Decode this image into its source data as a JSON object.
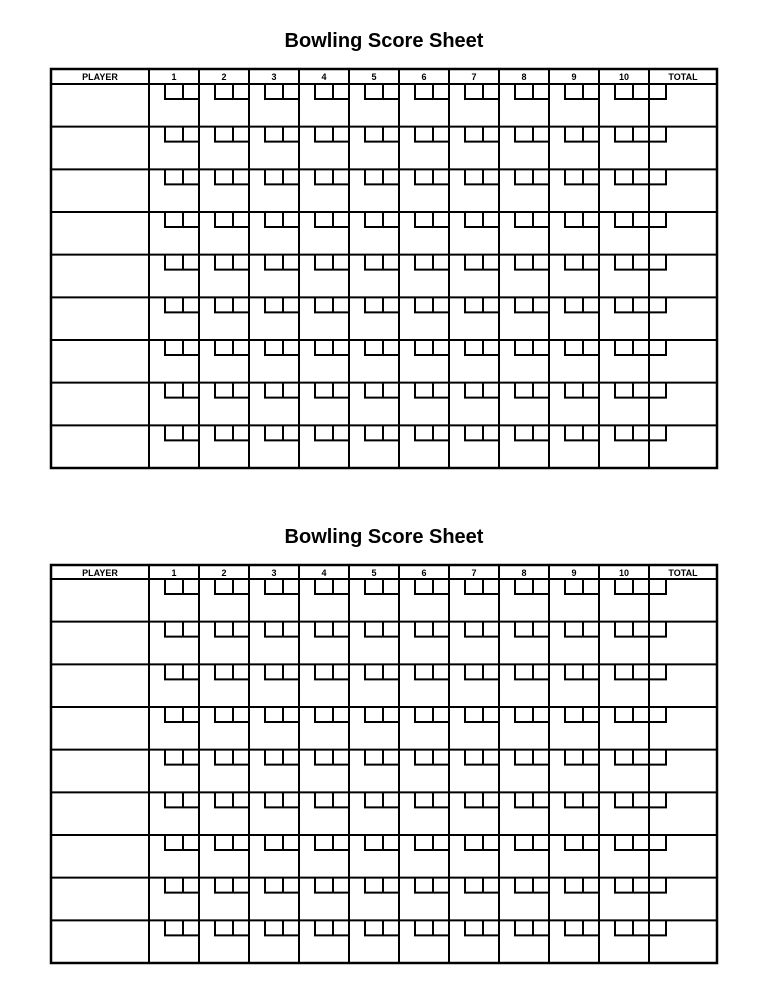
{
  "sheets": [
    {
      "title": "Bowling Score Sheet",
      "headers": [
        "PLAYER",
        "1",
        "2",
        "3",
        "4",
        "5",
        "6",
        "7",
        "8",
        "9",
        "10",
        "TOTAL"
      ],
      "player_rows": 9
    },
    {
      "title": "Bowling Score Sheet",
      "headers": [
        "PLAYER",
        "1",
        "2",
        "3",
        "4",
        "5",
        "6",
        "7",
        "8",
        "9",
        "10",
        "TOTAL"
      ],
      "player_rows": 9
    }
  ],
  "colors": {
    "ink": "#000000",
    "paper": "#ffffff"
  }
}
